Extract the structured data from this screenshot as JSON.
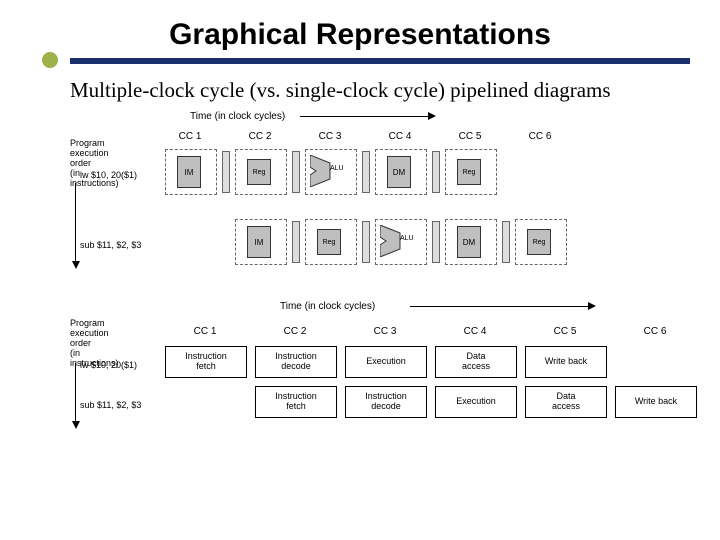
{
  "title": "Graphical Representations",
  "subtitle": "Multiple-clock cycle (vs. single-clock cycle) pipelined diagrams",
  "top": {
    "time_label": "Time (in clock cycles)",
    "cols": [
      "CC 1",
      "CC 2",
      "CC 3",
      "CC 4",
      "CC 5",
      "CC 6"
    ],
    "prog_label": "Program\nexecution\norder\n(in instructions)",
    "row1_label": "lw $10, 20($1)",
    "row2_label": "sub $11, $2, $3",
    "stage_labels": [
      "IM",
      "Reg",
      "ALU",
      "DM",
      "Reg"
    ]
  },
  "bottom": {
    "time_label": "Time (in clock cycles)",
    "cols": [
      "CC 1",
      "CC 2",
      "CC 3",
      "CC 4",
      "CC 5",
      "CC 6"
    ],
    "prog_label": "Program\nexecution\norder\n(in instructions)",
    "row1_label": "lw $10, 20($1)",
    "row2_label": "sub $11, $2, $3",
    "stage_names": [
      "Instruction\nfetch",
      "Instruction\ndecode",
      "Execution",
      "Data\naccess",
      "Write back"
    ]
  },
  "colors": {
    "rule": "#1a2f6b",
    "bullet": "#9db14a",
    "box_fill": "#bfbfbf"
  }
}
